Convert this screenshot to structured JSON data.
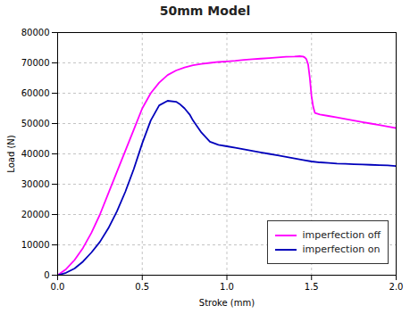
{
  "chart_data": {
    "type": "line",
    "title": "50mm Model",
    "x_label": "Stroke (mm)",
    "y_label": "Load (N)",
    "xlim": [
      0.0,
      2.0
    ],
    "ylim": [
      0,
      80000
    ],
    "xticks": [
      {
        "value": 0.0,
        "label": "0.0"
      },
      0.5,
      {
        "value": 1.0,
        "label": "1.0"
      },
      1.5,
      {
        "value": 2.0,
        "label": "2.0"
      }
    ],
    "yticks": [
      0,
      10000,
      20000,
      30000,
      40000,
      50000,
      60000,
      70000,
      80000
    ],
    "grid": true,
    "legend": "lower right",
    "series": [
      {
        "name": "imperfection off",
        "color": "#FF00FF",
        "x": [
          0.0,
          0.05,
          0.1,
          0.15,
          0.2,
          0.25,
          0.3,
          0.35,
          0.4,
          0.45,
          0.5,
          0.55,
          0.6,
          0.65,
          0.7,
          0.75,
          0.8,
          0.85,
          0.9,
          0.95,
          1.0,
          1.05,
          1.1,
          1.15,
          1.2,
          1.25,
          1.3,
          1.35,
          1.4,
          1.43,
          1.45,
          1.46,
          1.47,
          1.48,
          1.49,
          1.5,
          1.51,
          1.52,
          1.55,
          1.6,
          1.65,
          1.7,
          1.75,
          1.8,
          1.85,
          1.9,
          1.95,
          2.0
        ],
        "values": [
          0,
          2000,
          5000,
          9000,
          14000,
          20000,
          27000,
          34000,
          41000,
          48000,
          55000,
          60000,
          63500,
          66000,
          67500,
          68500,
          69200,
          69700,
          70000,
          70300,
          70500,
          70700,
          71000,
          71200,
          71400,
          71600,
          71800,
          72000,
          72100,
          72200,
          72100,
          71800,
          71200,
          69500,
          65000,
          59000,
          55500,
          53500,
          53000,
          52500,
          52000,
          51500,
          51000,
          50500,
          50000,
          49500,
          49000,
          48500
        ]
      },
      {
        "name": "imperfection on",
        "color": "#0000BB",
        "x": [
          0.0,
          0.05,
          0.1,
          0.15,
          0.2,
          0.25,
          0.3,
          0.35,
          0.4,
          0.45,
          0.5,
          0.55,
          0.6,
          0.65,
          0.7,
          0.72,
          0.75,
          0.78,
          0.8,
          0.85,
          0.9,
          0.95,
          1.0,
          1.05,
          1.1,
          1.15,
          1.2,
          1.25,
          1.3,
          1.35,
          1.4,
          1.45,
          1.5,
          1.55,
          1.6,
          1.65,
          1.7,
          1.75,
          1.8,
          1.85,
          1.9,
          1.95,
          2.0
        ],
        "values": [
          0,
          800,
          2200,
          4500,
          7500,
          11000,
          15500,
          21000,
          27500,
          35000,
          43500,
          51000,
          56000,
          57500,
          57200,
          56500,
          55000,
          53000,
          51000,
          47000,
          44000,
          43000,
          42500,
          42000,
          41500,
          41000,
          40500,
          40000,
          39500,
          39000,
          38500,
          38000,
          37500,
          37200,
          37000,
          36800,
          36700,
          36600,
          36500,
          36400,
          36300,
          36200,
          36000
        ]
      }
    ]
  }
}
